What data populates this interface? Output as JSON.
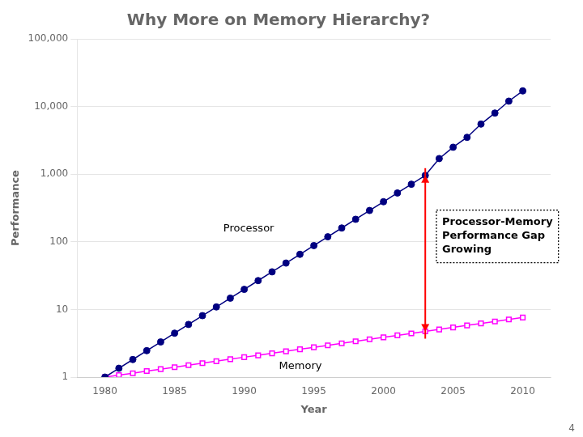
{
  "chart_data": {
    "type": "line",
    "title": "Why More on Memory Hierarchy?",
    "x_label": "Year",
    "y_label": "Performance",
    "x": [
      1980,
      1981,
      1982,
      1983,
      1984,
      1985,
      1986,
      1987,
      1988,
      1989,
      1990,
      1991,
      1992,
      1993,
      1994,
      1995,
      1996,
      1997,
      1998,
      1999,
      2000,
      2001,
      2002,
      2003,
      2004,
      2005,
      2006,
      2007,
      2008,
      2009,
      2010
    ],
    "series": [
      {
        "name": "Processor",
        "color": "#000080",
        "marker": "circle",
        "values": [
          1.0,
          1.35,
          1.82,
          2.46,
          3.31,
          4.46,
          6.01,
          8.1,
          10.9,
          14.7,
          19.8,
          26.7,
          36.0,
          48.5,
          65.3,
          88.0,
          118.6,
          159.9,
          215.4,
          290.3,
          391.0,
          527.0,
          710.0,
          957.0,
          1700.0,
          2500.0,
          3500.0,
          5500.0,
          8000.0,
          12000.0,
          17000.0
        ]
      },
      {
        "name": "Memory",
        "color": "#FF00FF",
        "marker": "open_square",
        "values": [
          1.0,
          1.07,
          1.14,
          1.23,
          1.31,
          1.4,
          1.5,
          1.61,
          1.72,
          1.84,
          1.97,
          2.1,
          2.25,
          2.41,
          2.58,
          2.76,
          2.95,
          3.16,
          3.38,
          3.62,
          3.87,
          4.14,
          4.43,
          4.74,
          5.07,
          5.43,
          5.81,
          6.21,
          6.65,
          7.11,
          7.61
        ]
      }
    ],
    "xlim": [
      1978,
      2012
    ],
    "xticks": [
      1980,
      1985,
      1990,
      1995,
      2000,
      2005,
      2010
    ],
    "ylim": [
      1,
      100000
    ],
    "yticks": [
      1,
      10,
      100,
      {
        "value": 1000,
        "label": "1,000"
      },
      {
        "value": 10000,
        "label": "10,000"
      },
      {
        "value": 100000,
        "label": "100,000"
      }
    ],
    "log": "y",
    "grid": "y",
    "annotations": [
      {
        "text": "Processor",
        "x": 1988.5,
        "y": 200
      },
      {
        "text": "Memory",
        "x": 1992.5,
        "y": 1.85
      },
      {
        "text": "Processor-Memory\nPerformance Gap\nGrowing",
        "x": 2003.8,
        "y": 120
      },
      {
        "text": "4"
      }
    ],
    "arrow": {
      "x": 2003,
      "y_from": 4.74,
      "y_to": 957.0,
      "color": "red"
    }
  }
}
